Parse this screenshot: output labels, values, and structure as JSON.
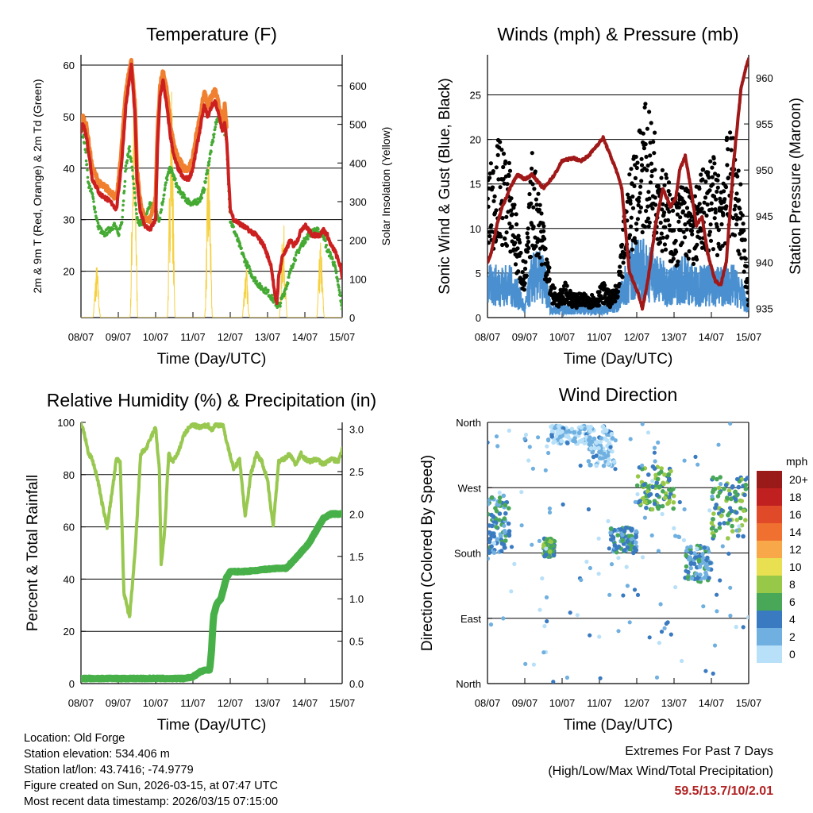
{
  "chart_data": [
    {
      "type": "line",
      "title": "Temperature (F)",
      "xlabel": "Time (Day/UTC)",
      "ylabel": "2m & 9m T (Red, Orange) & 2m Td (Green)",
      "ylabel_right": "Solar Insolation (Yellow)",
      "x_ticks": [
        "08/07",
        "09/07",
        "10/07",
        "11/07",
        "12/07",
        "13/07",
        "14/07",
        "15/07"
      ],
      "ylim": [
        11,
        62
      ],
      "y_ticks": [
        20,
        30,
        40,
        50,
        60
      ],
      "y_gridlines": [
        20,
        30,
        40,
        50,
        60
      ],
      "y2lim": [
        0,
        680
      ],
      "y2_ticks": [
        0,
        100,
        200,
        300,
        400,
        500,
        600
      ],
      "series": [
        {
          "name": "9m T",
          "color": "#f08030",
          "x": [
            0,
            0.05,
            0.15,
            0.3,
            0.5,
            0.7,
            0.85,
            0.95,
            1.0,
            1.1,
            1.2,
            1.35,
            1.45,
            1.5,
            1.58,
            1.7,
            1.85,
            2.0,
            2.05,
            2.12,
            2.2,
            2.3,
            2.4,
            2.5,
            2.6,
            2.75,
            2.9,
            3.0,
            3.1,
            3.2,
            3.3,
            3.4,
            3.5,
            3.6,
            3.7,
            3.8,
            3.85,
            3.9
          ],
          "values": [
            48,
            50,
            48,
            40,
            37,
            36,
            35,
            34,
            37,
            45,
            55,
            61,
            52,
            40,
            34,
            30,
            30,
            34,
            47,
            56,
            59,
            55,
            48,
            44,
            42,
            40,
            40,
            42,
            47,
            50,
            55,
            52,
            54,
            55,
            52,
            49,
            52,
            48
          ]
        },
        {
          "name": "2m T",
          "color": "#cc2020",
          "x": [
            0,
            0.05,
            0.15,
            0.3,
            0.5,
            0.7,
            0.85,
            0.95,
            1.0,
            1.1,
            1.2,
            1.35,
            1.45,
            1.5,
            1.58,
            1.7,
            1.85,
            2.0,
            2.05,
            2.12,
            2.2,
            2.3,
            2.4,
            2.5,
            2.6,
            2.75,
            2.9,
            3.0,
            3.1,
            3.2,
            3.3,
            3.4,
            3.5,
            3.6,
            3.7,
            3.8,
            3.85,
            3.9,
            4.0,
            4.1,
            4.3,
            4.5,
            4.7,
            4.8,
            4.9,
            5.0,
            5.1,
            5.2,
            5.25,
            5.3,
            5.4,
            5.5,
            5.6,
            5.7,
            5.8,
            5.9,
            6.0,
            6.2,
            6.4,
            6.5,
            6.6,
            6.7,
            6.8,
            6.9,
            6.95,
            7.0
          ],
          "values": [
            47,
            49,
            46,
            38,
            35,
            34,
            33,
            32,
            35,
            42,
            52,
            60,
            50,
            38,
            32,
            29,
            28,
            30,
            44,
            54,
            57,
            52,
            46,
            42,
            40,
            38,
            38,
            40,
            44,
            48,
            52,
            50,
            52,
            53,
            50,
            47,
            49,
            46,
            32,
            30,
            29,
            28,
            27,
            26,
            25,
            23,
            21,
            15,
            14,
            19,
            23,
            24,
            26,
            25,
            26,
            28,
            29,
            27,
            27,
            28,
            27,
            25,
            24,
            22,
            21,
            19
          ]
        },
        {
          "name": "2m Td",
          "color": "#44aa33",
          "x": [
            0,
            0.1,
            0.2,
            0.3,
            0.45,
            0.6,
            0.75,
            0.9,
            1.0,
            1.1,
            1.2,
            1.3,
            1.4,
            1.5,
            1.6,
            1.75,
            1.85,
            2.0,
            2.1,
            2.2,
            2.3,
            2.4,
            2.5,
            2.6,
            2.8,
            3.0,
            3.2,
            3.3,
            3.4,
            3.5,
            3.6,
            3.7,
            3.8,
            3.9,
            4.0,
            4.2,
            4.4,
            4.6,
            4.8,
            5.0,
            5.1,
            5.2,
            5.3,
            5.5,
            5.7,
            5.9,
            6.1,
            6.3,
            6.5,
            6.6,
            6.7,
            6.8,
            6.9,
            7.0
          ],
          "values": [
            48,
            45,
            37,
            35,
            29,
            27,
            28,
            29,
            27,
            30,
            40,
            44,
            38,
            30,
            29,
            31,
            33,
            32,
            30,
            34,
            38,
            40,
            38,
            36,
            34,
            33,
            34,
            36,
            40,
            44,
            48,
            51,
            49,
            45,
            30,
            26,
            22,
            19,
            17,
            16,
            15,
            14,
            13,
            17,
            22,
            25,
            27,
            28,
            27,
            24,
            23,
            21,
            17,
            13
          ]
        },
        {
          "name": "Solar Insolation",
          "axis": "right",
          "color": "#f5d040",
          "peak_x": [
            0.42,
            1.42,
            2.42,
            3.42,
            4.42,
            5.42,
            6.42
          ],
          "peak_values": [
            140,
            650,
            650,
            450,
            140,
            260,
            200
          ]
        }
      ]
    },
    {
      "type": "scatter",
      "title": "Winds (mph) & Pressure (mb)",
      "xlabel": "Time (Day/UTC)",
      "ylabel": "Sonic Wind & Gust (Blue, Black)",
      "ylabel_right": "Station Pressure (Maroon)",
      "x_ticks": [
        "08/07",
        "09/07",
        "10/07",
        "11/07",
        "12/07",
        "13/07",
        "14/07",
        "15/07"
      ],
      "ylim": [
        0,
        29.5
      ],
      "y_ticks": [
        0,
        5,
        10,
        15,
        20,
        25
      ],
      "y_gridlines": [
        5,
        10,
        15,
        20,
        25
      ],
      "y2lim": [
        934,
        962.5
      ],
      "y2_ticks": [
        935,
        940,
        945,
        950,
        955,
        960
      ],
      "series": [
        {
          "name": "Sonic Wind",
          "color": "#4a90d0",
          "x": [
            0,
            0.3,
            0.6,
            0.8,
            1.0,
            1.2,
            1.5,
            1.7,
            1.9,
            2.1,
            2.3,
            2.6,
            2.9,
            3.1,
            3.3,
            3.5,
            3.7,
            3.9,
            4.2,
            4.5,
            4.8,
            5.0,
            5.3,
            5.5,
            5.7,
            6.0,
            6.2,
            6.4,
            6.6,
            6.8,
            7.0
          ],
          "values": [
            4,
            4,
            4,
            3,
            1,
            5,
            5,
            1,
            1,
            1,
            1,
            1,
            1,
            1,
            1,
            2,
            4,
            6,
            6,
            5,
            4,
            4,
            5,
            4,
            4,
            4,
            4,
            4,
            4,
            3,
            1
          ]
        },
        {
          "name": "Gust",
          "color": "#000000",
          "x": [
            0,
            0.3,
            0.6,
            0.8,
            1.0,
            1.2,
            1.5,
            1.7,
            1.9,
            2.1,
            2.3,
            2.6,
            2.9,
            3.1,
            3.3,
            3.5,
            3.7,
            3.9,
            4.2,
            4.5,
            4.8,
            5.0,
            5.3,
            5.5,
            5.7,
            6.0,
            6.2,
            6.4,
            6.6,
            6.8,
            7.0
          ],
          "values": [
            12,
            15,
            13,
            8,
            4,
            14,
            9,
            3,
            2,
            3,
            2,
            2,
            2,
            3,
            2,
            3,
            10,
            14,
            18,
            16,
            12,
            10,
            12,
            10,
            12,
            14,
            12,
            15,
            16,
            11,
            2
          ]
        },
        {
          "name": "Station Pressure",
          "axis": "right",
          "color": "#a01818",
          "x": [
            0,
            0.1,
            0.25,
            0.4,
            0.6,
            0.8,
            1.0,
            1.2,
            1.5,
            1.8,
            2.0,
            2.3,
            2.5,
            2.7,
            2.9,
            3.1,
            3.3,
            3.45,
            3.6,
            3.8,
            3.95,
            4.05,
            4.15,
            4.3,
            4.5,
            4.7,
            4.9,
            5.05,
            5.15,
            5.3,
            5.45,
            5.6,
            5.75,
            5.9,
            6.1,
            6.25,
            6.4,
            6.6,
            6.8,
            6.95,
            7.0
          ],
          "values": [
            940,
            941,
            944,
            946,
            948,
            949.5,
            949,
            949.5,
            948,
            949.5,
            951,
            951.3,
            951,
            951.5,
            952.5,
            953.5,
            951.5,
            950,
            948,
            939,
            937.5,
            936.5,
            935,
            938,
            944,
            948,
            946,
            947,
            950,
            951.5,
            948,
            944,
            945,
            941,
            938,
            937.5,
            940,
            951,
            959,
            961.5,
            962
          ]
        }
      ]
    },
    {
      "type": "line",
      "title": "Relative Humidity (%) & Precipitation (in)",
      "xlabel": "Time (Day/UTC)",
      "ylabel": "Percent & Total Rainfall",
      "x_ticks": [
        "08/07",
        "09/07",
        "10/07",
        "11/07",
        "12/07",
        "13/07",
        "14/07",
        "15/07"
      ],
      "ylim": [
        0,
        100
      ],
      "y_ticks": [
        0,
        20,
        40,
        60,
        80,
        100
      ],
      "y_gridlines": [
        20,
        40,
        60,
        80
      ],
      "y2lim": [
        0,
        3.08
      ],
      "y2_ticks": [
        "0.0",
        "0.5",
        "1.0",
        "1.5",
        "2.0",
        "2.5",
        "3.0"
      ],
      "series": [
        {
          "name": "Relative Humidity",
          "color": "#98c850",
          "x": [
            0,
            0.1,
            0.2,
            0.3,
            0.45,
            0.55,
            0.7,
            0.85,
            0.95,
            1.05,
            1.15,
            1.3,
            1.45,
            1.6,
            1.75,
            1.9,
            2.0,
            2.1,
            2.15,
            2.25,
            2.35,
            2.45,
            2.6,
            2.75,
            2.9,
            3.0,
            3.2,
            3.4,
            3.5,
            3.6,
            3.8,
            3.95,
            4.1,
            4.25,
            4.4,
            4.55,
            4.7,
            4.85,
            5.0,
            5.15,
            5.3,
            5.45,
            5.6,
            5.75,
            5.9,
            6.0,
            6.15,
            6.3,
            6.5,
            6.7,
            6.9,
            7.0
          ],
          "values": [
            100,
            95,
            88,
            86,
            78,
            70,
            60,
            75,
            86,
            85,
            35,
            25,
            50,
            88,
            90,
            95,
            98,
            82,
            45,
            60,
            88,
            85,
            88,
            95,
            98,
            99,
            98,
            99,
            97,
            99,
            99,
            90,
            82,
            86,
            64,
            80,
            88,
            85,
            78,
            60,
            85,
            86,
            88,
            84,
            88,
            86,
            85,
            86,
            84,
            86,
            85,
            90
          ]
        },
        {
          "name": "Total Rainfall",
          "axis": "right",
          "color": "#48b048",
          "x": [
            0,
            0.5,
            1.0,
            1.5,
            2.0,
            2.5,
            2.8,
            3.0,
            3.2,
            3.35,
            3.45,
            3.5,
            3.55,
            3.65,
            3.75,
            3.9,
            4.0,
            4.3,
            4.6,
            5.0,
            5.3,
            5.5,
            5.7,
            5.9,
            6.1,
            6.3,
            6.5,
            6.7,
            7.0
          ],
          "values": [
            0.06,
            0.06,
            0.06,
            0.06,
            0.06,
            0.06,
            0.06,
            0.08,
            0.14,
            0.16,
            0.16,
            0.4,
            0.8,
            0.95,
            1.0,
            1.25,
            1.32,
            1.32,
            1.33,
            1.35,
            1.36,
            1.36,
            1.45,
            1.55,
            1.65,
            1.8,
            1.95,
            2.0,
            2.0
          ]
        }
      ]
    },
    {
      "type": "scatter",
      "title": "Wind Direction",
      "xlabel": "Time (Day/UTC)",
      "ylabel": "Direction (Colored By Speed)",
      "x_ticks": [
        "08/07",
        "09/07",
        "10/07",
        "11/07",
        "12/07",
        "13/07",
        "14/07",
        "15/07"
      ],
      "ylim": [
        0,
        360
      ],
      "y_ticks": [
        "North",
        "East",
        "South",
        "West",
        "North"
      ],
      "y_tick_values": [
        0,
        90,
        180,
        270,
        360
      ],
      "legend_title": "mph",
      "legend_labels": [
        "20+",
        "18",
        "16",
        "14",
        "12",
        "10",
        "8",
        "6",
        "4",
        "2",
        "0"
      ],
      "legend_colors": [
        "#9a1a1a",
        "#c02020",
        "#e04a28",
        "#f07030",
        "#f8a848",
        "#e8e050",
        "#98c848",
        "#48a858",
        "#3a7ac0",
        "#70b0e0",
        "#b8e0f8"
      ],
      "clusters": [
        {
          "x": [
            0,
            0.6
          ],
          "dir": [
            180,
            260
          ],
          "speed": 4
        },
        {
          "x": [
            1.5,
            1.8
          ],
          "dir": [
            175,
            200
          ],
          "speed": 6
        },
        {
          "x": [
            1.7,
            2.7
          ],
          "dir": [
            330,
            355
          ],
          "speed": 1
        },
        {
          "x": [
            2.7,
            3.4
          ],
          "dir": [
            300,
            355
          ],
          "speed": 1
        },
        {
          "x": [
            3.3,
            4.0
          ],
          "dir": [
            180,
            215
          ],
          "speed": 4
        },
        {
          "x": [
            4.0,
            5.0
          ],
          "dir": [
            240,
            300
          ],
          "speed": 6
        },
        {
          "x": [
            5.3,
            6.0
          ],
          "dir": [
            140,
            190
          ],
          "speed": 4
        },
        {
          "x": [
            6.0,
            7.0
          ],
          "dir": [
            200,
            285
          ],
          "speed": 6
        }
      ]
    }
  ],
  "info": {
    "location": "Location: Old Forge",
    "elevation": "Station elevation: 534.406 m",
    "latlon": "Station lat/lon: 43.7416; -74.9779",
    "created": "Figure created on Sun, 2026-03-15, at 07:47 UTC",
    "recent": "Most recent data timestamp: 2026/03/15 07:15:00"
  },
  "extremes": {
    "title": "Extremes For Past 7 Days",
    "subtitle": "(High/Low/Max Wind/Total Precipitation)",
    "values": "59.5/13.7/10/2.01"
  }
}
